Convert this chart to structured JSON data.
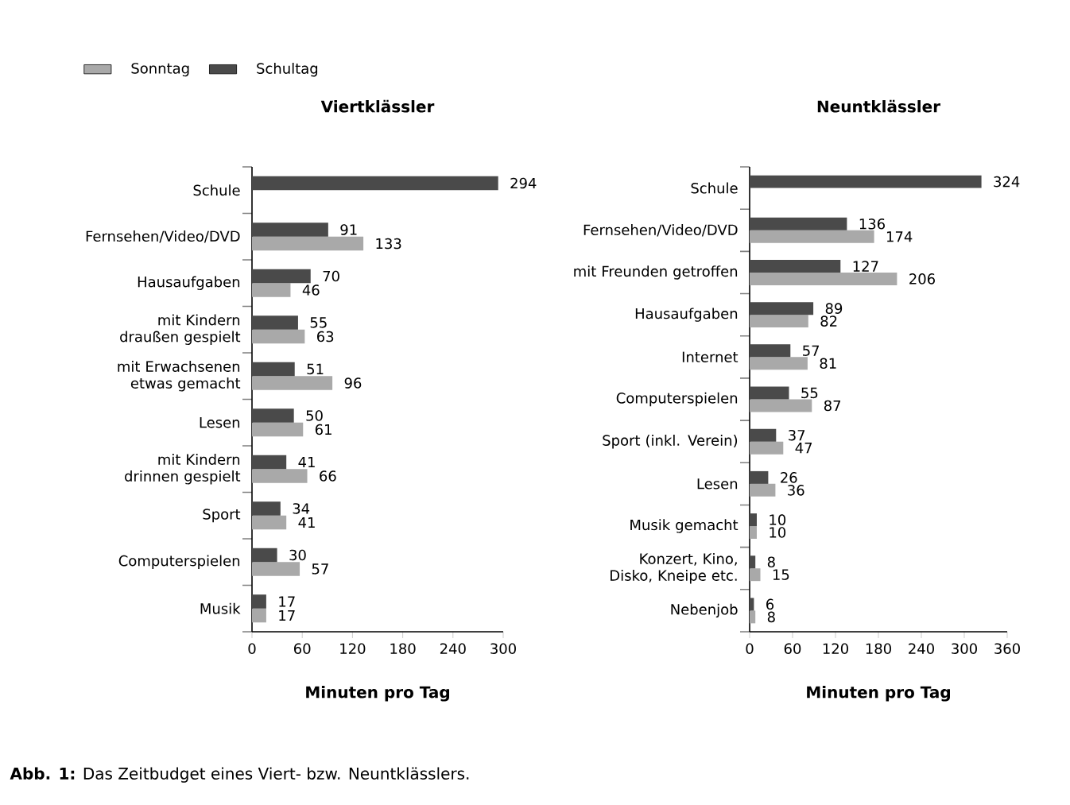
{
  "chart_data": [
    {
      "type": "bar",
      "orientation": "horizontal",
      "title": "Viertklässler",
      "xlabel": "Minuten pro Tag",
      "categories": [
        "Schule",
        "Fernsehen/Video/DVD",
        "Hausaufgaben",
        "mit Kindern draußen gespielt",
        "mit Erwachsenen etwas gemacht",
        "Lesen",
        "mit Kindern drinnen gespielt",
        "Sport",
        "Computerspielen",
        "Musik"
      ],
      "series": [
        {
          "name": "Sonntag",
          "color": "#a9a9a9",
          "values": [
            null,
            133,
            46,
            63,
            96,
            61,
            66,
            41,
            57,
            17
          ]
        },
        {
          "name": "Schultag",
          "color": "#4a4a4a",
          "values": [
            294,
            91,
            70,
            55,
            51,
            50,
            41,
            34,
            30,
            17
          ]
        }
      ],
      "xlim": [
        0,
        300
      ],
      "xticks": [
        0,
        60,
        120,
        180,
        240,
        300
      ],
      "data_labels": true,
      "legend": "top left",
      "annotations": [
        "**Abb. 1:** Das Zeitbudget eines Viert- bzw. Neuntklässlers."
      ]
    },
    {
      "type": "bar",
      "orientation": "horizontal",
      "title": "Neuntklässler",
      "xlabel": "Minuten pro Tag",
      "categories": [
        "Schule",
        "Fernsehen/Video/DVD",
        "mit Freunden getroffen",
        "Hausaufgaben",
        "Internet",
        "Computerspielen",
        "Sport (inkl. Verein)",
        "Lesen",
        "Musik gemacht",
        "Konzert, Kino, Disko, Kneipe etc.",
        "Nebenjob"
      ],
      "series": [
        {
          "color": "#a9a9a9",
          "values": [
            null,
            174,
            206,
            82,
            81,
            87,
            47,
            36,
            10,
            15,
            8
          ]
        },
        {
          "color": "#4a4a4a",
          "values": [
            324,
            136,
            127,
            89,
            57,
            55,
            37,
            26,
            10,
            8,
            6
          ]
        }
      ],
      "xlim": [
        0,
        360
      ],
      "xticks": [
        0,
        60,
        120,
        180,
        240,
        300,
        360
      ],
      "data_labels": true,
      "legend": false
    }
  ]
}
